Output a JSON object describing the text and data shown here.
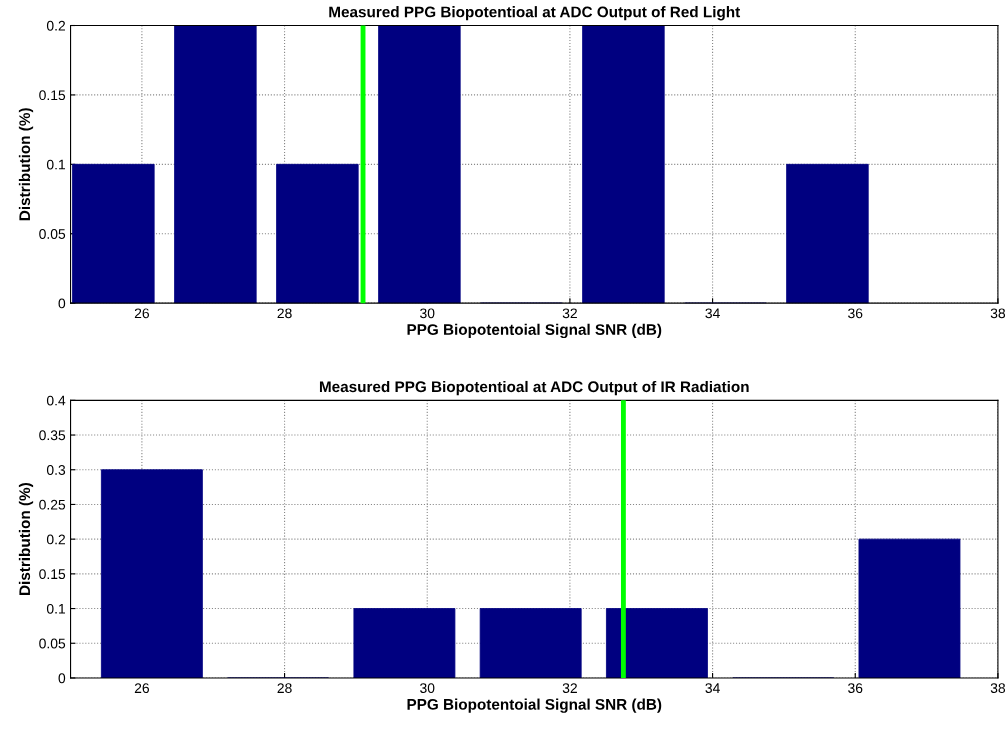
{
  "chart_data": [
    {
      "type": "bar",
      "title": "Measured PPG Biopotentioal at ADC Output of Red Light",
      "xlabel": "PPG Biopotentoial Signal SNR (dB)",
      "ylabel": "Distribution (%)",
      "x": [
        25.6,
        27.03,
        28.46,
        29.89,
        31.32,
        32.75,
        34.18,
        35.61
      ],
      "values": [
        0.1,
        0.2,
        0.1,
        0.2,
        0,
        0.2,
        0,
        0.1
      ],
      "color": "#000080",
      "xlim": [
        25,
        38
      ],
      "xticks": [
        26,
        28,
        30,
        32,
        34,
        36,
        38
      ],
      "ylim": [
        0,
        0.2
      ],
      "yticks": [
        0,
        0.05,
        0.1,
        0.15,
        0.2
      ],
      "grid": true,
      "ref_lines": [
        {
          "axis": "x",
          "value": 29.1,
          "color": "#00ff00"
        }
      ]
    },
    {
      "type": "bar",
      "title": "Measured PPG Biopotentioal at ADC Output of IR Radiation",
      "xlabel": "PPG Biopotentoial Signal SNR (dB)",
      "ylabel": "Distribution (%)",
      "x": [
        26.14,
        27.91,
        29.68,
        31.45,
        33.22,
        34.99,
        36.76
      ],
      "values": [
        0.3,
        0,
        0.1,
        0.1,
        0.1,
        0,
        0.2
      ],
      "color": "#000080",
      "xlim": [
        25,
        38
      ],
      "xticks": [
        26,
        28,
        30,
        32,
        34,
        36,
        38
      ],
      "ylim": [
        0,
        0.4
      ],
      "yticks": [
        0,
        0.05,
        0.1,
        0.15,
        0.2,
        0.25,
        0.3,
        0.35,
        0.4
      ],
      "grid": true,
      "ref_lines": [
        {
          "axis": "x",
          "value": 32.75,
          "color": "#00ff00"
        }
      ]
    }
  ]
}
